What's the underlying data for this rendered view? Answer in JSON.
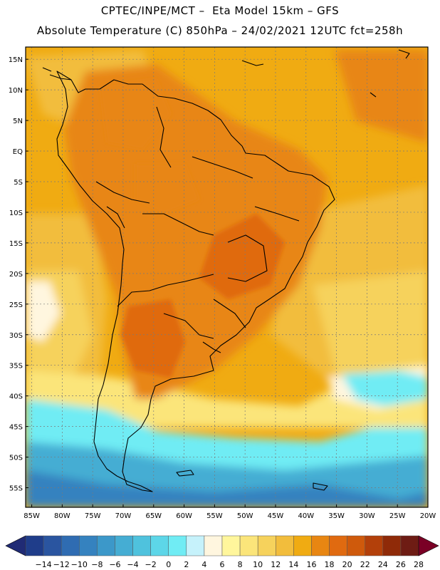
{
  "header": {
    "line1": "CPTEC/INPE/MCT –  Eta Model 15km – GFS",
    "line2": "Absolute Temperature (C) 850hPa – 24/02/2021 12UTC fct=258h"
  },
  "map": {
    "lat_labels": [
      "15N",
      "10N",
      "5N",
      "EQ",
      "5S",
      "10S",
      "15S",
      "20S",
      "25S",
      "30S",
      "35S",
      "40S",
      "45S",
      "50S",
      "55S"
    ],
    "lat_values": [
      15,
      10,
      5,
      0,
      -5,
      -10,
      -15,
      -20,
      -25,
      -30,
      -35,
      -40,
      -45,
      -50,
      -55
    ],
    "lon_labels": [
      "85W",
      "80W",
      "75W",
      "70W",
      "65W",
      "60W",
      "55W",
      "50W",
      "45W",
      "40W",
      "35W",
      "30W",
      "25W",
      "20W"
    ],
    "lon_values": [
      -85,
      -80,
      -75,
      -70,
      -65,
      -60,
      -55,
      -50,
      -45,
      -40,
      -35,
      -30,
      -25,
      -20
    ],
    "lat_range": [
      -58.2,
      17
    ],
    "lon_range": [
      -86,
      -20
    ]
  },
  "colorbar": {
    "labels": [
      "-14",
      "-12",
      "-10",
      "-8",
      "-6",
      "-4",
      "-2",
      "0",
      "2",
      "4",
      "6",
      "8",
      "10",
      "12",
      "14",
      "16",
      "18",
      "20",
      "22",
      "24",
      "26",
      "28"
    ],
    "colors": [
      "#1f3d8a",
      "#2a55a0",
      "#2f6cb2",
      "#3582bf",
      "#3c98c9",
      "#45add3",
      "#4fc2dd",
      "#5dd6e8",
      "#70ecf4",
      "#c6f2fb",
      "#fff6df",
      "#fff69c",
      "#fbe57a",
      "#f6d25c",
      "#f2bd3c",
      "#f0ab12",
      "#e88612",
      "#e06a10",
      "#cf5a0c",
      "#b3400a",
      "#8f2a08",
      "#6e1c14"
    ],
    "low_color": "#202b75",
    "high_color": "#7a0025"
  },
  "field_colors": {
    "ocean_warm": "#f0ab12",
    "land_warm": "#e88612",
    "hot_core": "#e06a10",
    "cooler_ocean": "#f2bd3c",
    "subtropical": "#f6d25c",
    "transition": "#fbe57a",
    "cold_light": "#70ecf4",
    "cold_mid": "#45add3",
    "cold_deep": "#3582bf",
    "pale": "#fff6df"
  }
}
